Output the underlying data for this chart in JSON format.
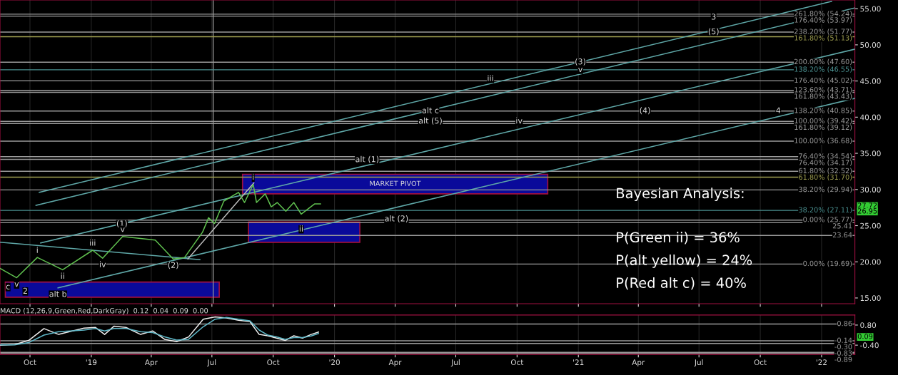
{
  "chart_data": [
    {
      "type": "line",
      "tick_labels": "y",
      "grid": "x",
      "x": [
        "2018-08-17",
        "2018-09-11",
        "2018-10-12",
        "2018-11-19",
        "2019-01-03",
        "2019-01-18",
        "2019-02-17",
        "2019-04-07",
        "2019-05-04",
        "2019-05-21",
        "2019-06-17",
        "2019-06-26",
        "2019-07-05",
        "2019-07-19",
        "2019-08-10",
        "2019-08-19",
        "2019-09-01",
        "2019-09-06",
        "2019-09-19",
        "2019-09-28",
        "2019-10-07",
        "2019-10-20",
        "2019-11-01",
        "2019-11-12",
        "2019-12-02",
        "2019-12-11"
      ],
      "xlim": [
        "2018-08-17",
        "2022-02-20"
      ],
      "xticks": [
        {
          "value": "2018-10-01",
          "label": null
        },
        {
          "value": "2019-01-01",
          "label": null
        },
        {
          "value": "2019-04-01",
          "label": null
        },
        {
          "value": "2019-07-01",
          "label": null
        },
        {
          "value": "2019-10-01",
          "label": null
        },
        {
          "value": "2020-01-01",
          "label": null
        },
        {
          "value": "2020-04-01",
          "label": null
        },
        {
          "value": "2020-07-01",
          "label": null
        },
        {
          "value": "2020-10-01",
          "label": null
        },
        {
          "value": "2021-01-01",
          "label": null
        },
        {
          "value": "2021-04-01",
          "label": null
        },
        {
          "value": "2021-07-01",
          "label": null
        },
        {
          "value": "2021-10-01",
          "label": null
        },
        {
          "value": "2022-01-01",
          "label": null
        }
      ],
      "ylim": [
        14.2,
        56.2
      ],
      "yticks": [
        {
          "value": 15,
          "label": "15.00"
        },
        {
          "value": 20,
          "label": "20.00"
        },
        {
          "value": 25,
          "label": "25.00"
        },
        {
          "value": 30,
          "label": "30.00"
        },
        {
          "value": 35,
          "label": "35.00"
        },
        {
          "value": 40,
          "label": "40.00"
        },
        {
          "value": 45,
          "label": "45.00"
        },
        {
          "value": 50,
          "label": "50.00"
        },
        {
          "value": 55,
          "label": "55.00"
        }
      ],
      "series": [
        {
          "type": "area",
          "name": "MARKET PIVOT",
          "color": "#0a0a9a",
          "x": [
            "2019-08-16",
            "2020-11-16",
            "2020-11-16",
            "2019-08-16",
            "2019-08-16"
          ],
          "values": [
            32.1,
            32.1,
            29.4,
            29.4,
            32.1
          ]
        },
        {
          "type": "area",
          "color": "#0a0a9a",
          "x": [
            "2019-08-25",
            "2020-02-08",
            "2020-02-08",
            "2019-08-25",
            "2019-08-25"
          ],
          "values": [
            25.5,
            25.5,
            22.7,
            22.7,
            25.5
          ]
        },
        {
          "type": "area",
          "color": "#0a0a9a",
          "x": [
            "2018-08-25",
            "2019-07-12",
            "2019-07-12",
            "2018-08-25",
            "2018-08-25"
          ],
          "values": [
            17.2,
            17.2,
            15.1,
            15.1,
            17.2
          ]
        },
        {
          "type": "line",
          "color": "#5fa8a8",
          "x": [
            "2018-10-15",
            "2022-01-16"
          ],
          "values": [
            29.6,
            56.0
          ]
        },
        {
          "type": "line",
          "color": "#5fa8a8",
          "x": [
            "2018-10-10",
            "2022-02-20"
          ],
          "values": [
            27.8,
            55.1
          ]
        },
        {
          "type": "line",
          "color": "#5fa8a8",
          "x": [
            "2018-10-17",
            "2022-02-20"
          ],
          "values": [
            22.6,
            49.4
          ]
        },
        {
          "type": "line",
          "color": "#5fa8a8",
          "x": [
            "2018-11-12",
            "2022-02-20"
          ],
          "values": [
            16.4,
            42.6
          ]
        },
        {
          "type": "line",
          "color": "#5fa8a8",
          "x": [
            "2018-08-17",
            "2019-06-13"
          ],
          "values": [
            22.7,
            20.3
          ]
        },
        {
          "type": "line",
          "color": "#bbbbbb",
          "x": [
            "2019-05-26",
            "2019-09-02"
          ],
          "values": [
            20.4,
            30.9
          ]
        },
        {
          "type": "line",
          "color": "#5fbf4f",
          "values": [
            19.1,
            17.8,
            20.6,
            18.9,
            21.6,
            20.5,
            23.5,
            23.0,
            20.4,
            20.6,
            24.1,
            26.1,
            25.3,
            28.4,
            29.6,
            28.2,
            30.7,
            28.2,
            29.4,
            27.6,
            28.2,
            27.0,
            28.2,
            26.6,
            28.0,
            28.0
          ]
        }
      ],
      "ref_lines": [
        {
          "axis": "x",
          "value": "2019-07-03",
          "color": "#9a9a9a"
        },
        {
          "axis": "y",
          "value": 54.24,
          "label": "261.80% (54.24)",
          "color": "#9a9a9a"
        },
        {
          "axis": "y",
          "value": 53.97,
          "label": "176.40% (53.97)",
          "color": "#9a9a9a"
        },
        {
          "axis": "y",
          "value": 51.77,
          "label": "238.20% (51.77)",
          "color": "#9a9a9a"
        },
        {
          "axis": "y",
          "value": 51.13,
          "label": "161.80% (51.13)",
          "color": "#a0a050"
        },
        {
          "axis": "y",
          "value": 47.6,
          "label": "200.00% (47.60)",
          "color": "#9a9a9a"
        },
        {
          "axis": "y",
          "value": 46.55,
          "label": "138.20% (46.55)",
          "color": "#4a9090"
        },
        {
          "axis": "y",
          "value": 45.02,
          "label": "176.40% (45.02)",
          "color": "#9a9a9a"
        },
        {
          "axis": "y",
          "value": 43.71,
          "label": "123.60% (43.71)",
          "color": "#9a9a9a"
        },
        {
          "axis": "y",
          "value": 43.43,
          "label": "161.80% (43.43)",
          "color": "#9a9a9a"
        },
        {
          "axis": "y",
          "value": 40.85,
          "label": "138.20% (40.85)",
          "color": "#9a9a9a"
        },
        {
          "axis": "y",
          "value": 39.42,
          "label": "100.00% (39.42)",
          "color": "#9a9a9a"
        },
        {
          "axis": "y",
          "value": 39.12,
          "label": "161.80% (39.12)",
          "color": "#9a9a9a"
        },
        {
          "axis": "y",
          "value": 36.68,
          "label": "100.00% (36.68)",
          "color": "#9a9a9a"
        },
        {
          "axis": "y",
          "value": 34.54,
          "label": "76.40% (34.54)",
          "color": "#9a9a9a"
        },
        {
          "axis": "y",
          "value": 34.17,
          "label": "76.40% (34.17)",
          "color": "#9a9a9a"
        },
        {
          "axis": "y",
          "value": 32.52,
          "label": "61.80% (32.52)",
          "color": "#9a9a9a"
        },
        {
          "axis": "y",
          "value": 31.7,
          "label": "61.80% (31.70)",
          "color": "#a0a050"
        },
        {
          "axis": "y",
          "value": 29.94,
          "label": "38.20% (29.94)",
          "color": "#9a9a9a"
        },
        {
          "axis": "y",
          "value": 27.11,
          "label": "38.20% (27.11)",
          "color": "#4a9090"
        },
        {
          "axis": "y",
          "value": 25.77,
          "label": "0.00% (25.77)",
          "color": "#9a9a9a"
        },
        {
          "axis": "y",
          "value": 25.41,
          "label": "25.41",
          "color": "#9a9a9a"
        },
        {
          "axis": "y",
          "value": 23.64,
          "label": "23.64",
          "color": "#9a9a9a"
        },
        {
          "axis": "y",
          "value": 19.69,
          "label": "0.00% (19.69)",
          "color": "#9a9a9a"
        }
      ],
      "annotations": [
        {
          "text": "2",
          "x": "2018-09-24",
          "y": 15.9
        },
        {
          "text": "v",
          "x": "2018-09-11",
          "y": 17.8
        },
        {
          "text": "c",
          "x": "2018-08-29",
          "y": 16.5
        },
        {
          "text": "alt b",
          "x": "2018-11-12",
          "y": 16.4
        },
        {
          "text": "i",
          "x": "2018-10-12",
          "y": 20.6
        },
        {
          "text": "ii",
          "x": "2018-11-19",
          "y": 18.9
        },
        {
          "text": "iii",
          "x": "2019-01-03",
          "y": 21.6
        },
        {
          "text": "iv",
          "x": "2019-01-18",
          "y": 20.5
        },
        {
          "text": "(1)",
          "x": "2019-02-16",
          "y": 25.2
        },
        {
          "text": "v",
          "x": "2019-02-17",
          "y": 23.5
        },
        {
          "text": "(2)",
          "x": "2019-05-04",
          "y": 20.4
        },
        {
          "text": "i",
          "x": "2019-09-01",
          "y": 30.7
        },
        {
          "text": "ii",
          "x": "2019-11-12",
          "y": 24.5
        },
        {
          "text": "alt (2)",
          "x": "2020-04-03",
          "y": 25.9
        },
        {
          "text": "alt (1)",
          "x": "2020-02-19",
          "y": 34.1
        },
        {
          "text": "alt c",
          "x": "2020-05-24",
          "y": 40.85
        },
        {
          "text": "alt (5)",
          "x": "2020-05-24",
          "y": 39.42
        },
        {
          "text": "iii",
          "x": "2020-08-22",
          "y": 45.3
        },
        {
          "text": "iv",
          "x": "2020-10-04",
          "y": 39.42
        },
        {
          "text": "(3)",
          "x": "2021-01-04",
          "y": 47.6
        },
        {
          "text": "v",
          "x": "2021-01-04",
          "y": 46.55
        },
        {
          "text": "(4)",
          "x": "2021-04-11",
          "y": 40.85
        },
        {
          "text": "3",
          "x": "2021-07-23",
          "y": 53.8
        },
        {
          "text": "(5)",
          "x": "2021-07-23",
          "y": 51.77
        },
        {
          "text": "4",
          "x": "2021-10-28",
          "y": 40.85
        },
        {
          "text": "27.72",
          "y": 27.72
        },
        {
          "text": "26.95",
          "y": 26.95
        },
        "Bayesian Analysis:",
        "P(Green ii) = 36%",
        "P(alt yellow) = 24%",
        "P(Red alt c) = 40%"
      ]
    },
    {
      "type": "line",
      "title": "MACD (12,26,9,Green,Red,DarkGray)  0.12  0.04  0.09  0.00",
      "grid": "x",
      "x": [
        "2018-08-17",
        "2018-09-08",
        "2018-09-29",
        "2018-10-22",
        "2018-11-13",
        "2018-12-21",
        "2019-01-07",
        "2019-01-21",
        "2019-02-04",
        "2019-02-22",
        "2019-03-16",
        "2019-04-03",
        "2019-04-21",
        "2019-05-09",
        "2019-05-27",
        "2019-06-18",
        "2019-07-06",
        "2019-07-23",
        "2019-08-10",
        "2019-08-27",
        "2019-09-10",
        "2019-09-23",
        "2019-10-06",
        "2019-10-19",
        "2019-11-01",
        "2019-11-14",
        "2019-11-27",
        "2019-12-08"
      ],
      "xlim": [
        "2018-08-17",
        "2022-02-20"
      ],
      "xticks": [
        {
          "value": "2018-10-01",
          "label": "Oct"
        },
        {
          "value": "2019-01-01",
          "label": "'19"
        },
        {
          "value": "2019-04-01",
          "label": "Apr"
        },
        {
          "value": "2019-07-01",
          "label": "Jul"
        },
        {
          "value": "2019-10-01",
          "label": "Oct"
        },
        {
          "value": "2020-01-01",
          "label": "'20"
        },
        {
          "value": "2020-04-01",
          "label": "Apr"
        },
        {
          "value": "2020-07-01",
          "label": "Jul"
        },
        {
          "value": "2020-10-01",
          "label": "Oct"
        },
        {
          "value": "2021-01-01",
          "label": "'21"
        },
        {
          "value": "2021-04-01",
          "label": "Apr"
        },
        {
          "value": "2021-07-01",
          "label": "Jul"
        },
        {
          "value": "2021-10-01",
          "label": "Oct"
        },
        {
          "value": "2022-01-01",
          "label": "'22"
        }
      ],
      "ylim": [
        -0.95,
        1.4
      ],
      "yticks": [
        {
          "value": -0.4,
          "label": "-0.40"
        },
        {
          "value": 0.8,
          "label": "0.80"
        }
      ],
      "series": [
        {
          "color": "#eeeeee",
          "values": [
            -0.4,
            -0.36,
            -0.12,
            0.59,
            0.24,
            0.62,
            0.66,
            0.24,
            0.73,
            0.66,
            0.24,
            0.45,
            -0.05,
            -0.19,
            0.09,
            1.15,
            1.29,
            1.22,
            1.08,
            1.01,
            0.24,
            0.16,
            0.02,
            -0.12,
            0.16,
            0.02,
            0.24,
            0.38
          ]
        },
        {
          "color": "#5fb8c8",
          "values": [
            -0.38,
            -0.38,
            -0.25,
            0.2,
            0.4,
            0.5,
            0.6,
            0.45,
            0.6,
            0.6,
            0.4,
            0.35,
            0.1,
            -0.1,
            -0.05,
            0.7,
            1.15,
            1.25,
            1.15,
            1.05,
            0.5,
            0.2,
            0.1,
            -0.05,
            0.05,
            0.05,
            0.15,
            0.3
          ]
        }
      ],
      "ref_lines": [
        {
          "axis": "y",
          "value": 0.86,
          "label": "0.86",
          "color": "#9a9a9a"
        },
        {
          "axis": "y",
          "value": -0.14,
          "label": "-0.14",
          "color": "#9a9a9a"
        },
        {
          "axis": "y",
          "value": -0.3,
          "label": "-0.30",
          "color": "#9a9a9a"
        },
        {
          "axis": "y",
          "value": -0.83,
          "label": "-0.83",
          "color": "#9a9a9a"
        },
        {
          "axis": "y",
          "value": -0.89,
          "label": "-0.89",
          "color": "#9a9a9a"
        }
      ],
      "annotations": [
        {
          "text": "0.09",
          "y": 0.09
        }
      ]
    }
  ]
}
